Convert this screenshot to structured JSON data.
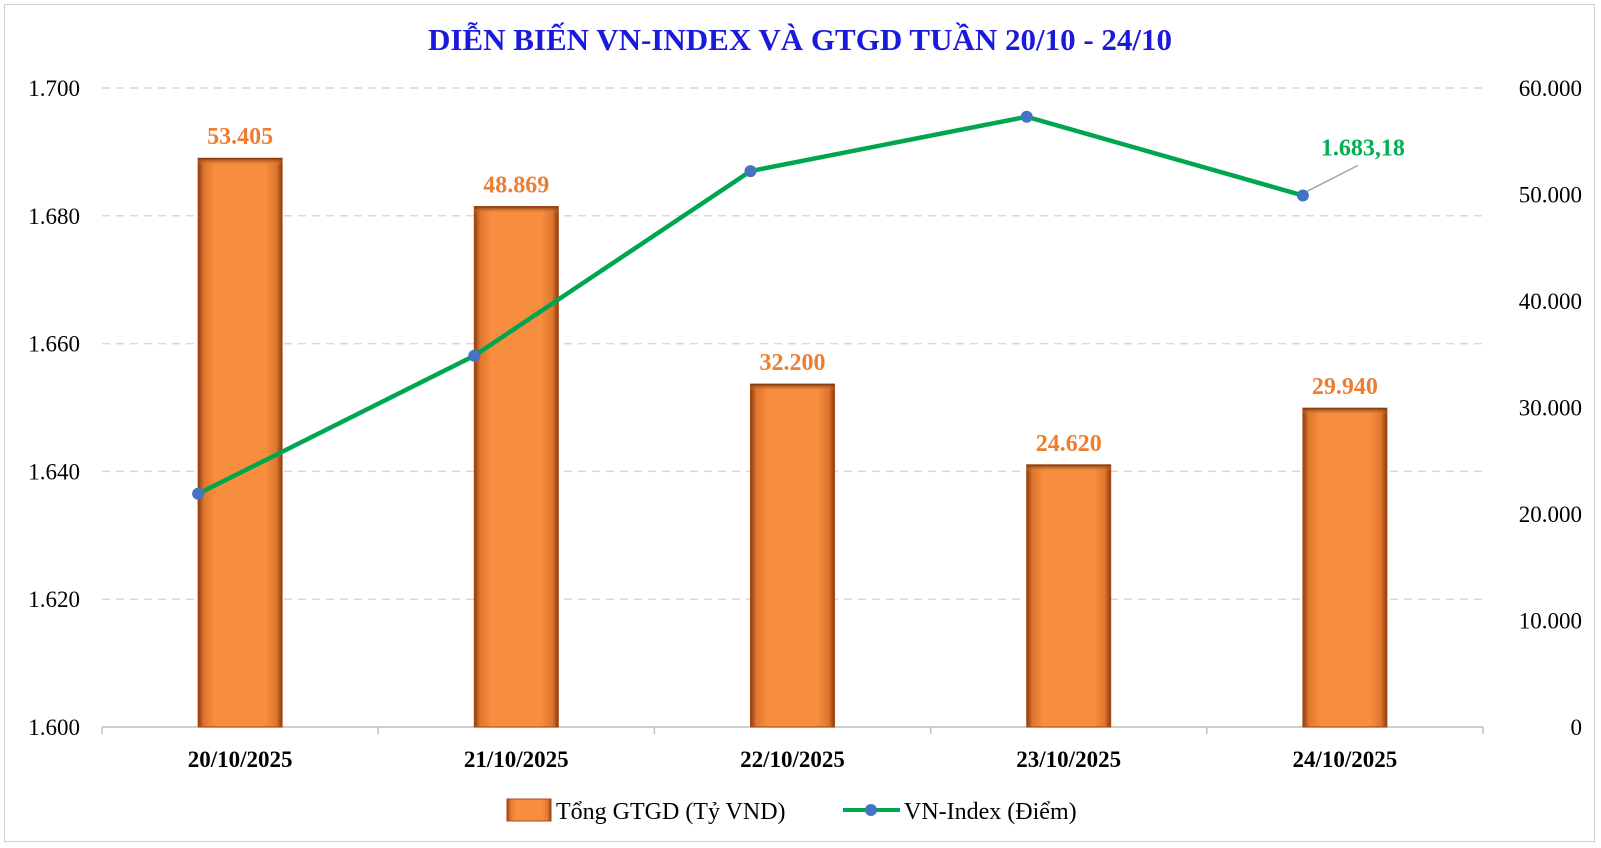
{
  "chart_data": {
    "type": "bar",
    "title": "DIỄN BIẾN VN-INDEX VÀ GTGD TUẦN 20/10 - 24/10",
    "categories": [
      "20/10/2025",
      "21/10/2025",
      "22/10/2025",
      "23/10/2025",
      "24/10/2025"
    ],
    "series": [
      {
        "name": "Tổng GTGD (Tỷ VND)",
        "type": "bar",
        "axis": "right",
        "color": "#f58a3b",
        "values": [
          53405,
          48869,
          32200,
          24620,
          29940
        ],
        "data_labels": [
          "53.405",
          "48.869",
          "32.200",
          "24.620",
          "29.940"
        ]
      },
      {
        "name": "VN-Index (Điểm)",
        "type": "line",
        "axis": "left",
        "color": "#00a64f",
        "marker_color": "#4472c4",
        "values": [
          1636.5,
          1658.1,
          1687.0,
          1695.5,
          1683.18
        ],
        "data_labels": [
          "",
          "",
          "",
          "",
          "1.683,18"
        ]
      }
    ],
    "y_left": {
      "ylim": [
        1600,
        1700
      ],
      "ticks": [
        1600,
        1620,
        1640,
        1660,
        1680,
        1700
      ],
      "tick_labels": [
        "1.600",
        "1.620",
        "1.640",
        "1.660",
        "1.680",
        "1.700"
      ]
    },
    "y_right": {
      "ylim": [
        0,
        60000
      ],
      "ticks": [
        0,
        10000,
        20000,
        30000,
        40000,
        50000,
        60000
      ],
      "tick_labels": [
        "0",
        "10.000",
        "20.000",
        "30.000",
        "40.000",
        "50.000",
        "60.000"
      ]
    },
    "grid": true,
    "legend_position": "bottom"
  }
}
